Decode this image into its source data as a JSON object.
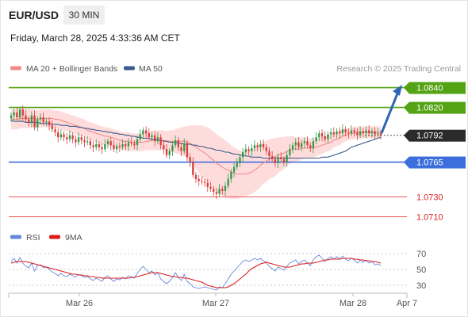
{
  "header": {
    "pair": "EUR/USD",
    "timeframe": "30 MIN",
    "datetime": "Friday, March 28, 2025 4:33:36 AM CET",
    "credit": "Research © 2025 Trading Central"
  },
  "colors": {
    "bull": "#2f9a48",
    "bear": "#dc3a3a",
    "band_fill": "#ffd6d6",
    "ma20": "#f28a8a",
    "ma50": "#3b5b8f",
    "res": "#53a314",
    "sup": "#3c6fdc",
    "tgt": "#e65555",
    "arrow": "#2d66b5",
    "rsi": "#6688dd",
    "rsi_ma": "#dd1a1a"
  },
  "chart_data": [
    {
      "type": "candlestick",
      "x_labels": [
        "Mar 26",
        "Mar 27",
        "Mar 28",
        "Apr 7"
      ],
      "legend": [
        {
          "name": "MA 20 + Bollinger Bands",
          "color": "#f28a8a"
        },
        {
          "name": "MA 50",
          "color": "#3b5b8f"
        }
      ],
      "ylim": [
        1.07,
        1.085
      ],
      "current_price": {
        "value": 1.0792,
        "label": "1.0792"
      },
      "levels": [
        {
          "value": 1.084,
          "label": "1.0840",
          "kind": "resistance"
        },
        {
          "value": 1.082,
          "label": "1.0820",
          "kind": "resistance"
        },
        {
          "value": 1.0765,
          "label": "1.0765",
          "kind": "support"
        },
        {
          "value": 1.073,
          "label": "1.0730",
          "kind": "target"
        },
        {
          "value": 1.071,
          "label": "1.0710",
          "kind": "target"
        }
      ],
      "close": [
        1.0812,
        1.0815,
        1.081,
        1.0818,
        1.0812,
        1.0808,
        1.0805,
        1.0812,
        1.08,
        1.0808,
        1.081,
        1.0805,
        1.0806,
        1.0802,
        1.0798,
        1.0795,
        1.079,
        1.0793,
        1.079,
        1.0788,
        1.0792,
        1.0788,
        1.0785,
        1.079,
        1.0787,
        1.0785,
        1.0786,
        1.0782,
        1.078,
        1.0783,
        1.078,
        1.0778,
        1.0783,
        1.0786,
        1.0782,
        1.0778,
        1.0781,
        1.078,
        1.0783,
        1.0781,
        1.0785,
        1.0784,
        1.0782,
        1.0788,
        1.0793,
        1.0797,
        1.0794,
        1.079,
        1.0792,
        1.0786,
        1.079,
        1.0782,
        1.0778,
        1.0772,
        1.0776,
        1.0782,
        1.0787,
        1.078,
        1.0776,
        1.0784,
        1.077,
        1.0765,
        1.0752,
        1.0748,
        1.0746,
        1.0745,
        1.0744,
        1.074,
        1.0738,
        1.0735,
        1.0733,
        1.0738,
        1.0736,
        1.0741,
        1.0748,
        1.0755,
        1.076,
        1.0764,
        1.077,
        1.0775,
        1.0778,
        1.0776,
        1.0779,
        1.0782,
        1.078,
        1.0783,
        1.078,
        1.0776,
        1.0771,
        1.0768,
        1.0764,
        1.077,
        1.0768,
        1.0765,
        1.0772,
        1.0778,
        1.0782,
        1.0785,
        1.078,
        1.0784,
        1.0786,
        1.0782,
        1.0779,
        1.0786,
        1.079,
        1.0794,
        1.0791,
        1.0788,
        1.0793,
        1.0795,
        1.0793,
        1.0796,
        1.0794,
        1.0798,
        1.0795,
        1.0794,
        1.0797,
        1.0795,
        1.0792,
        1.0796,
        1.0794,
        1.0797,
        1.0794,
        1.0796,
        1.0793,
        1.0794,
        1.0792
      ],
      "ma20": [
        1.0808,
        1.0808,
        1.0808,
        1.0809,
        1.0809,
        1.0809,
        1.0809,
        1.0809,
        1.0809,
        1.0808,
        1.0809,
        1.0809,
        1.0809,
        1.0809,
        1.0809,
        1.0808,
        1.0808,
        1.0807,
        1.0806,
        1.0805,
        1.0804,
        1.0803,
        1.0802,
        1.0801,
        1.08,
        1.0799,
        1.0797,
        1.0796,
        1.0795,
        1.0794,
        1.0793,
        1.0792,
        1.0791,
        1.0791,
        1.079,
        1.0789,
        1.0788,
        1.0787,
        1.0786,
        1.0786,
        1.0786,
        1.0785,
        1.0785,
        1.0785,
        1.0785,
        1.0785,
        1.0786,
        1.0786,
        1.0787,
        1.0787,
        1.0787,
        1.0787,
        1.0787,
        1.0786,
        1.0786,
        1.0786,
        1.0786,
        1.0786,
        1.0786,
        1.0786,
        1.0785,
        1.0784,
        1.0782,
        1.078,
        1.0778,
        1.0776,
        1.0774,
        1.0772,
        1.0769,
        1.0767,
        1.0764,
        1.0762,
        1.076,
        1.0758,
        1.0757,
        1.0755,
        1.0754,
        1.0753,
        1.0753,
        1.0753,
        1.0753,
        1.0754,
        1.0755,
        1.0757,
        1.0759,
        1.0762,
        1.0764,
        1.0766,
        1.0768,
        1.0769,
        1.077,
        1.0772,
        1.0773,
        1.0774,
        1.0776,
        1.0777,
        1.0778,
        1.0778,
        1.0778,
        1.0779,
        1.0779,
        1.0779,
        1.0779,
        1.0779,
        1.078,
        1.0781,
        1.0782,
        1.0783,
        1.0784,
        1.0785,
        1.0787,
        1.0788,
        1.0789,
        1.0791,
        1.0792,
        1.0793,
        1.0794,
        1.0794,
        1.0795,
        1.0795,
        1.0795,
        1.0795,
        1.0795,
        1.0795,
        1.0795,
        1.0795,
        1.0795
      ],
      "ma50": [
        1.0807,
        1.0806,
        1.0806,
        1.0806,
        1.0806,
        1.0805,
        1.0805,
        1.0805,
        1.0805,
        1.0805,
        1.0804,
        1.0804,
        1.0804,
        1.0804,
        1.0803,
        1.0803,
        1.0803,
        1.0802,
        1.0802,
        1.0802,
        1.0801,
        1.0801,
        1.0801,
        1.08,
        1.08,
        1.0799,
        1.0799,
        1.0798,
        1.0798,
        1.0797,
        1.0797,
        1.0796,
        1.0796,
        1.0795,
        1.0795,
        1.0794,
        1.0794,
        1.0793,
        1.0793,
        1.0792,
        1.0792,
        1.0791,
        1.0791,
        1.079,
        1.079,
        1.0789,
        1.0789,
        1.0789,
        1.0788,
        1.0788,
        1.0787,
        1.0787,
        1.0786,
        1.0786,
        1.0785,
        1.0785,
        1.0785,
        1.0784,
        1.0784,
        1.0783,
        1.0783,
        1.0783,
        1.0782,
        1.0782,
        1.0781,
        1.0781,
        1.078,
        1.0779,
        1.0779,
        1.0778,
        1.0777,
        1.0777,
        1.0776,
        1.0775,
        1.0775,
        1.0774,
        1.0773,
        1.0773,
        1.0772,
        1.0772,
        1.0771,
        1.0771,
        1.077,
        1.077,
        1.077,
        1.077,
        1.0769,
        1.0769,
        1.0769,
        1.0769,
        1.0769,
        1.0769,
        1.0769,
        1.0769,
        1.0769,
        1.0769,
        1.0769,
        1.0769,
        1.0769,
        1.0769,
        1.0769,
        1.0769,
        1.0769,
        1.0769,
        1.0769,
        1.0769,
        1.077,
        1.077,
        1.077,
        1.0771,
        1.0772,
        1.0773,
        1.0774,
        1.0775,
        1.0776,
        1.0778,
        1.078,
        1.0781,
        1.0782,
        1.0783,
        1.0784,
        1.0785,
        1.0786,
        1.0787,
        1.0788,
        1.0789,
        1.079
      ],
      "band_width": [
        0.001,
        0.001,
        0.001,
        0.001,
        0.001,
        0.001,
        0.001,
        0.0009,
        0.0009,
        0.0009,
        0.0009,
        0.0009,
        0.0009,
        0.0009,
        0.0009,
        0.0009,
        0.0009,
        0.0009,
        0.0009,
        0.0009,
        0.0009,
        0.0009,
        0.0009,
        0.0009,
        0.0009,
        0.0009,
        0.0009,
        0.0009,
        0.0009,
        0.0009,
        0.0009,
        0.0009,
        0.0009,
        0.0009,
        0.0009,
        0.0009,
        0.0009,
        0.0009,
        0.0009,
        0.0009,
        0.0009,
        0.0009,
        0.0009,
        0.0009,
        0.0009,
        0.0009,
        0.0009,
        0.0009,
        0.001,
        0.001,
        0.001,
        0.001,
        0.001,
        0.001,
        0.0011,
        0.0011,
        0.0012,
        0.0013,
        0.0014,
        0.0015,
        0.0016,
        0.0018,
        0.002,
        0.0022,
        0.0024,
        0.0026,
        0.0027,
        0.0028,
        0.0029,
        0.0029,
        0.0029,
        0.0029,
        0.0029,
        0.0029,
        0.0028,
        0.0027,
        0.0026,
        0.0025,
        0.0024,
        0.0023,
        0.0022,
        0.0022,
        0.0022,
        0.0022,
        0.0022,
        0.0022,
        0.0021,
        0.0021,
        0.002,
        0.002,
        0.0019,
        0.0018,
        0.0017,
        0.0016,
        0.0015,
        0.0014,
        0.0013,
        0.0012,
        0.0012,
        0.0011,
        0.0011,
        0.001,
        0.001,
        0.001,
        0.0009,
        0.0009,
        0.0009,
        0.0008,
        0.0008,
        0.0008,
        0.0007,
        0.0007,
        0.0007,
        0.0007,
        0.0006,
        0.0006,
        0.0006,
        0.0006,
        0.0006,
        0.0006,
        0.0006,
        0.0006,
        0.0006,
        0.0006,
        0.0006,
        0.0006,
        0.0006
      ],
      "projection": {
        "from": 1.0794,
        "to": 1.0838
      }
    },
    {
      "type": "line",
      "series": [
        {
          "name": "RSI",
          "color": "#6688dd"
        },
        {
          "name": "9MA",
          "color": "#dd1a1a"
        }
      ],
      "ylim": [
        25,
        75
      ],
      "y_ticks": [
        "70",
        "50",
        "30"
      ],
      "rsi": [
        60,
        64,
        58,
        65,
        58,
        54,
        52,
        58,
        48,
        55,
        56,
        52,
        53,
        50,
        47,
        45,
        42,
        45,
        42,
        41,
        44,
        42,
        40,
        44,
        42,
        40,
        41,
        38,
        36,
        39,
        37,
        35,
        40,
        42,
        38,
        35,
        38,
        37,
        40,
        38,
        42,
        41,
        39,
        45,
        50,
        54,
        50,
        46,
        48,
        43,
        46,
        38,
        35,
        32,
        35,
        40,
        46,
        40,
        36,
        44,
        35,
        32,
        28,
        27,
        26,
        27,
        28,
        27,
        26,
        25,
        24,
        28,
        27,
        32,
        38,
        44,
        48,
        52,
        56,
        60,
        62,
        60,
        62,
        64,
        62,
        64,
        61,
        58,
        54,
        51,
        48,
        53,
        51,
        49,
        54,
        58,
        60,
        62,
        57,
        60,
        62,
        58,
        55,
        62,
        66,
        68,
        64,
        60,
        64,
        66,
        63,
        66,
        63,
        67,
        63,
        61,
        64,
        62,
        58,
        62,
        59,
        62,
        58,
        60,
        56,
        57,
        55
      ],
      "ma9": [
        58,
        59,
        60,
        60,
        60,
        60,
        59,
        58,
        57,
        56,
        55,
        54,
        53,
        52,
        51,
        50,
        49,
        48,
        47,
        46,
        45,
        44,
        44,
        43,
        43,
        42,
        42,
        41,
        41,
        40,
        40,
        39,
        39,
        39,
        39,
        39,
        39,
        39,
        39,
        39,
        39,
        40,
        40,
        41,
        42,
        43,
        44,
        45,
        46,
        46,
        46,
        45,
        44,
        43,
        42,
        41,
        41,
        40,
        40,
        39,
        39,
        38,
        37,
        36,
        35,
        34,
        32,
        30,
        29,
        28,
        27,
        27,
        27,
        27,
        28,
        30,
        32,
        35,
        38,
        41,
        44,
        48,
        51,
        53,
        55,
        57,
        58,
        59,
        58,
        57,
        56,
        55,
        54,
        53,
        53,
        53,
        54,
        55,
        56,
        57,
        57,
        58,
        58,
        58,
        59,
        60,
        61,
        62,
        62,
        63,
        63,
        63,
        63,
        64,
        64,
        64,
        64,
        63,
        63,
        62,
        62,
        61,
        61,
        60,
        60,
        59,
        58
      ]
    }
  ]
}
